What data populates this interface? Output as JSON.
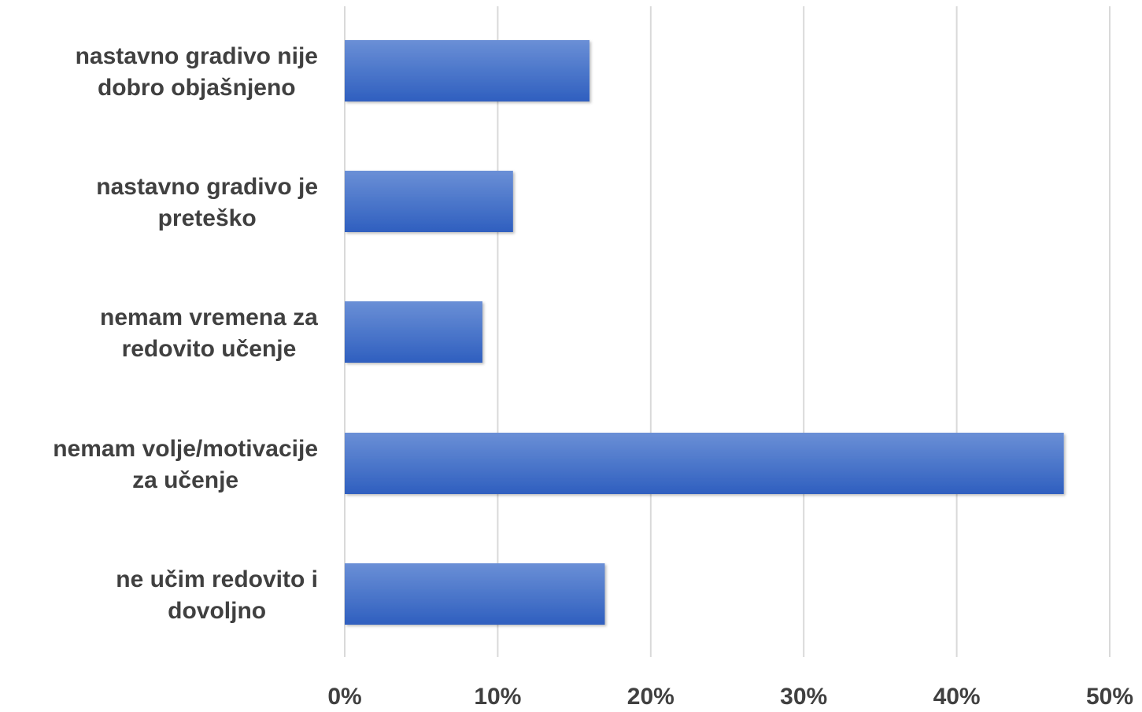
{
  "chart_data": {
    "type": "bar",
    "orientation": "horizontal",
    "title": "",
    "xlabel": "",
    "ylabel": "",
    "categories": [
      [
        "nastavno gradivo nije",
        "dobro objašnjeno"
      ],
      [
        "nastavno gradivo je",
        "preteško"
      ],
      [
        "nemam vremena za",
        "redovito učenje"
      ],
      [
        "nemam volje/motivacije",
        "za učenje"
      ],
      [
        "ne učim redovito i",
        "dovoljno"
      ]
    ],
    "values": [
      16,
      11,
      9,
      47,
      17
    ],
    "xlim": [
      0,
      50
    ],
    "tick_labels": [
      "0%",
      "10%",
      "20%",
      "30%",
      "40%",
      "50%"
    ],
    "grid": true,
    "legend": "none",
    "bar_color_top": "#6a8fd6",
    "bar_color_bottom": "#2f5fbf",
    "gridline_color": "#d9d9d9",
    "text_color": "#404040"
  }
}
